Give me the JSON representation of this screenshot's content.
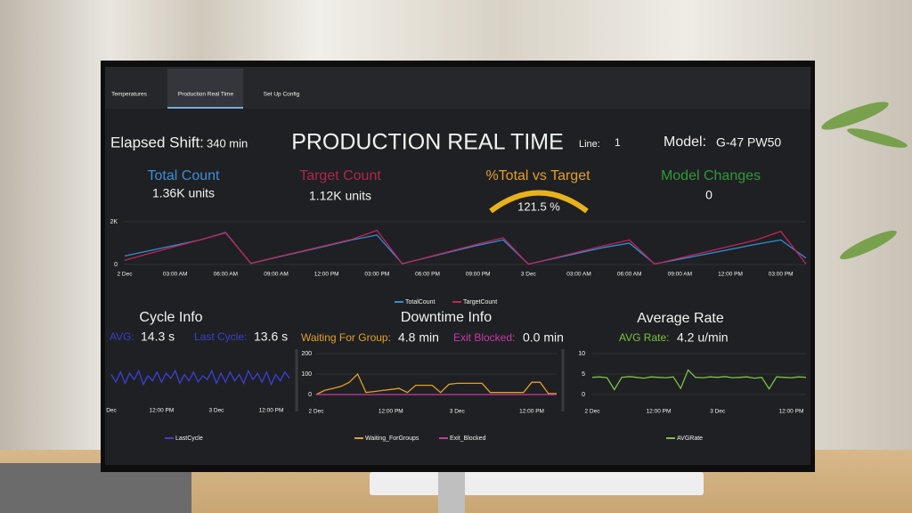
{
  "tabs": [
    "Temperatures",
    "Production Real Time",
    "Set Up Config"
  ],
  "header": {
    "elapsed_label": "Elapsed Shift:",
    "elapsed_value": "340 min",
    "title": "PRODUCTION REAL TIME",
    "line_label": "Line:",
    "line_value": "1",
    "model_label": "Model:",
    "model_value": "G-47 PW50"
  },
  "kpis": [
    {
      "label": "Total Count",
      "value": "1.36K units"
    },
    {
      "label": "Target Count",
      "value": "1.12K units"
    },
    {
      "label": "%Total vs Target",
      "value": "121.5 %"
    },
    {
      "label": "Model Changes",
      "value": "0"
    }
  ],
  "panels": [
    {
      "title": "Cycle Info",
      "stats": [
        {
          "label": "AVG:",
          "value": "14.3 s"
        },
        {
          "label": "Last Cycle:",
          "value": "13.6 s"
        }
      ]
    },
    {
      "title": "Downtime Info",
      "stats": [
        {
          "label": "Waiting For Group:",
          "value": "4.8 min"
        },
        {
          "label": "Exit Blocked:",
          "value": "0.0 min"
        }
      ]
    },
    {
      "title": "Average Rate",
      "stats": [
        {
          "label": "AVG Rate:",
          "value": "4.2 u/min"
        }
      ]
    }
  ],
  "main_chart": {
    "type": "line",
    "categories": [
      "2 Dec",
      null,
      "03:00 AM",
      null,
      "06:00 AM",
      null,
      "09:00 AM",
      null,
      "12:00 PM",
      null,
      "03:00 PM",
      null,
      "06:00 PM",
      null,
      "09:00 PM",
      null,
      "3 Dec",
      null,
      "03:00 AM",
      null,
      "06:00 AM",
      null,
      "09:00 AM",
      null,
      "12:00 PM",
      null,
      "03:00 PM",
      null
    ],
    "ylim": [
      0,
      2000
    ],
    "yticks": [
      0,
      {
        "value": 2000,
        "label": "2K"
      }
    ],
    "grid": true,
    "series": [
      {
        "name": "TotalCount",
        "color": "#2f8fd8",
        "values": [
          400,
          650,
          900,
          1150,
          1500,
          50,
          330,
          600,
          870,
          1150,
          1380,
          40,
          330,
          620,
          900,
          1150,
          20,
          280,
          540,
          800,
          1000,
          30,
          250,
          480,
          710,
          940,
          1150,
          300
        ]
      },
      {
        "name": "TargetCount",
        "color": "#c2245a",
        "values": [
          200,
          520,
          840,
          1160,
          1480,
          60,
          340,
          620,
          900,
          1180,
          1600,
          30,
          340,
          650,
          960,
          1250,
          10,
          300,
          590,
          880,
          1150,
          20,
          300,
          580,
          860,
          1140,
          1550,
          30
        ]
      }
    ]
  },
  "cycle_chart": {
    "type": "line",
    "categories": [
      "Dec",
      null,
      null,
      null,
      null,
      null,
      null,
      null,
      null,
      null,
      null,
      "12:00 PM",
      null,
      null,
      null,
      null,
      null,
      null,
      null,
      null,
      null,
      null,
      null,
      "3 Dec",
      null,
      null,
      null,
      null,
      null,
      null,
      null,
      null,
      null,
      null,
      null,
      "12:00 PM",
      null,
      null,
      null,
      null
    ],
    "ylim": [
      0,
      24
    ],
    "series": [
      {
        "name": "LastCycle",
        "color": "#3d3fd6",
        "values": [
          18,
          12,
          20,
          11,
          19,
          14,
          21,
          10,
          17,
          13,
          20,
          12,
          19,
          15,
          21,
          11,
          18,
          13,
          20,
          12,
          17,
          14,
          21,
          11,
          19,
          12,
          20,
          13,
          18,
          11,
          21,
          14,
          19,
          12,
          20,
          10,
          18,
          13,
          20,
          15
        ]
      }
    ]
  },
  "downtime_chart": {
    "type": "line",
    "categories": [
      "2 Dec",
      null,
      null,
      null,
      null,
      null,
      null,
      null,
      null,
      "12:00 PM",
      null,
      null,
      null,
      null,
      null,
      null,
      null,
      "3 Dec",
      null,
      null,
      null,
      null,
      null,
      null,
      null,
      null,
      "12:00 PM",
      null,
      null,
      null
    ],
    "ylim": [
      0,
      200
    ],
    "yticks": [
      0,
      100,
      200
    ],
    "grid": true,
    "series": [
      {
        "name": "Waiting_ForGroups",
        "color": "#e0a028",
        "values": [
          0,
          20,
          30,
          40,
          60,
          100,
          10,
          15,
          20,
          25,
          30,
          10,
          45,
          45,
          45,
          10,
          50,
          55,
          55,
          55,
          55,
          10,
          10,
          10,
          10,
          10,
          60,
          60,
          5,
          5
        ]
      },
      {
        "name": "Exit_Blocked",
        "color": "#c43aa8",
        "values": [
          0,
          0,
          0,
          0,
          0,
          0,
          0,
          0,
          0,
          0,
          0,
          0,
          0,
          0,
          0,
          0,
          0,
          0,
          0,
          0,
          0,
          0,
          0,
          0,
          0,
          0,
          0,
          0,
          0,
          0
        ]
      }
    ]
  },
  "rate_chart": {
    "type": "line",
    "categories": [
      "2 Dec",
      null,
      null,
      null,
      null,
      null,
      null,
      null,
      null,
      "12:00 PM",
      null,
      null,
      null,
      null,
      null,
      null,
      null,
      "3 Dec",
      null,
      null,
      null,
      null,
      null,
      null,
      null,
      null,
      null,
      "12:00 PM",
      null,
      null
    ],
    "ylim": [
      0,
      10
    ],
    "yticks": [
      0,
      5,
      10
    ],
    "grid": true,
    "series": [
      {
        "name": "AVGRate",
        "color": "#7cc242",
        "values": [
          4.2,
          4.3,
          4.1,
          1.2,
          4.2,
          4.4,
          4.2,
          4.0,
          4.3,
          4.2,
          4.1,
          4.3,
          1.5,
          6.0,
          4.2,
          4.1,
          4.3,
          4.2,
          4.4,
          4.1,
          4.2,
          4.3,
          4.0,
          4.2,
          1.4,
          4.3,
          4.2,
          4.1,
          4.3,
          4.2
        ]
      }
    ]
  }
}
